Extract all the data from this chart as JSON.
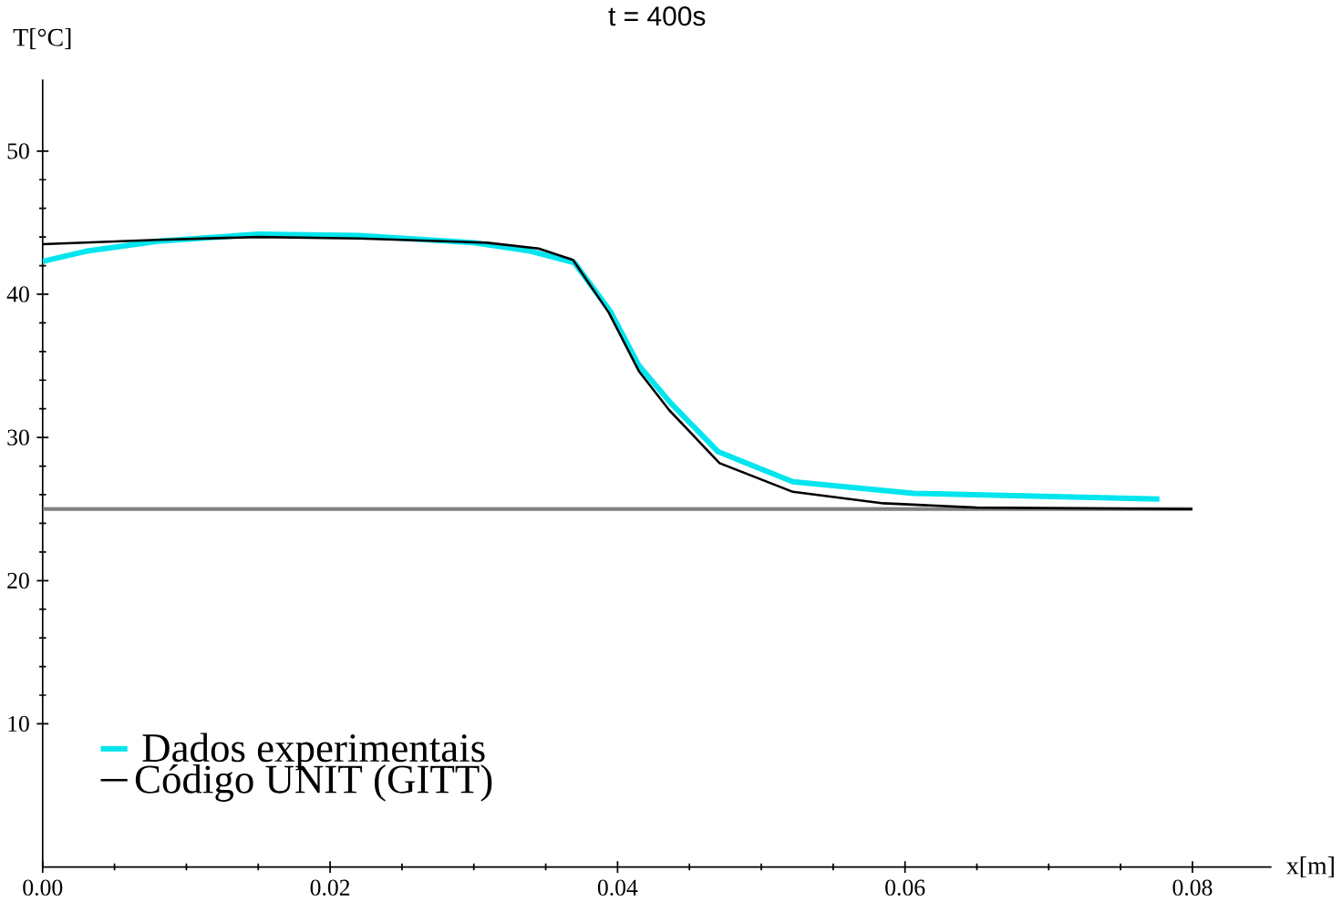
{
  "chart_data": {
    "type": "line",
    "title": "t = 400s",
    "xlabel": "x[m]",
    "ylabel": "T[°C]",
    "xlim": [
      0,
      0.0855
    ],
    "ylim": [
      0,
      55
    ],
    "xticks": [
      {
        "value": 0,
        "label": "0.00"
      },
      0.02,
      0.04,
      0.06,
      0.08
    ],
    "yticks": [
      10,
      20,
      30,
      40,
      50
    ],
    "grid": false,
    "legend": "bottom left",
    "marker": "none",
    "line_style": "solid",
    "ref_lines": [
      {
        "axis": "y",
        "value": 25,
        "color": "#808080"
      }
    ],
    "series": [
      {
        "name": "Dados experimentais",
        "color": "#00e5ee",
        "x": [
          0,
          0.003,
          0.008,
          0.015,
          0.022,
          0.03,
          0.034,
          0.037,
          0.0395,
          0.0415,
          0.0437,
          0.047,
          0.0522,
          0.0606,
          0.069,
          0.0777
        ],
        "values": [
          42.3,
          43.0,
          43.7,
          44.2,
          44.1,
          43.6,
          43.0,
          42.2,
          38.8,
          35.0,
          32.4,
          29.0,
          26.9,
          26.1,
          25.9,
          25.7
        ]
      },
      {
        "name": "Código UNIT (GITT)",
        "color": "#000000",
        "x": [
          0,
          0.008,
          0.015,
          0.022,
          0.0309,
          0.0345,
          0.0369,
          0.0394,
          0.0415,
          0.0436,
          0.0471,
          0.0522,
          0.0585,
          0.065,
          0.08
        ],
        "values": [
          43.5,
          43.8,
          44.0,
          43.9,
          43.6,
          43.2,
          42.4,
          38.7,
          34.6,
          31.9,
          28.2,
          26.2,
          25.4,
          25.1,
          25.0
        ]
      }
    ]
  }
}
